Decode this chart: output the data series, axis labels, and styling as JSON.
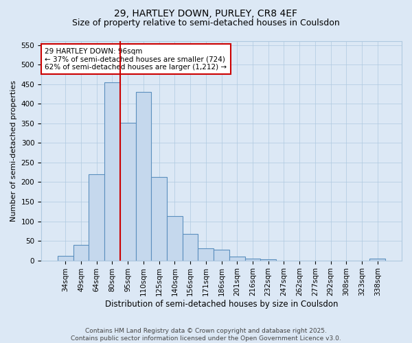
{
  "title1": "29, HARTLEY DOWN, PURLEY, CR8 4EF",
  "title2": "Size of property relative to semi-detached houses in Coulsdon",
  "xlabel": "Distribution of semi-detached houses by size in Coulsdon",
  "ylabel": "Number of semi-detached properties",
  "categories": [
    "34sqm",
    "49sqm",
    "64sqm",
    "80sqm",
    "95sqm",
    "110sqm",
    "125sqm",
    "140sqm",
    "156sqm",
    "171sqm",
    "186sqm",
    "201sqm",
    "216sqm",
    "232sqm",
    "247sqm",
    "262sqm",
    "277sqm",
    "292sqm",
    "308sqm",
    "323sqm",
    "338sqm"
  ],
  "values": [
    12,
    39,
    220,
    455,
    352,
    430,
    213,
    114,
    68,
    30,
    28,
    9,
    5,
    3,
    0,
    0,
    0,
    0,
    0,
    0,
    5
  ],
  "bar_color": "#c5d8ed",
  "bar_edge_color": "#5b8fbe",
  "vline_position": 3.5,
  "vline_color": "#cc0000",
  "annotation_text": "29 HARTLEY DOWN: 96sqm\n← 37% of semi-detached houses are smaller (724)\n62% of semi-detached houses are larger (1,212) →",
  "annotation_box_color": "#ffffff",
  "annotation_box_edge": "#cc0000",
  "ylim": [
    0,
    560
  ],
  "yticks": [
    0,
    50,
    100,
    150,
    200,
    250,
    300,
    350,
    400,
    450,
    500,
    550
  ],
  "grid_color": "#afc9e0",
  "background_color": "#dce8f5",
  "footer": "Contains HM Land Registry data © Crown copyright and database right 2025.\nContains public sector information licensed under the Open Government Licence v3.0.",
  "title1_fontsize": 10,
  "title2_fontsize": 9,
  "xlabel_fontsize": 8.5,
  "ylabel_fontsize": 8,
  "tick_fontsize": 7.5,
  "annotation_fontsize": 7.5,
  "footer_fontsize": 6.5
}
